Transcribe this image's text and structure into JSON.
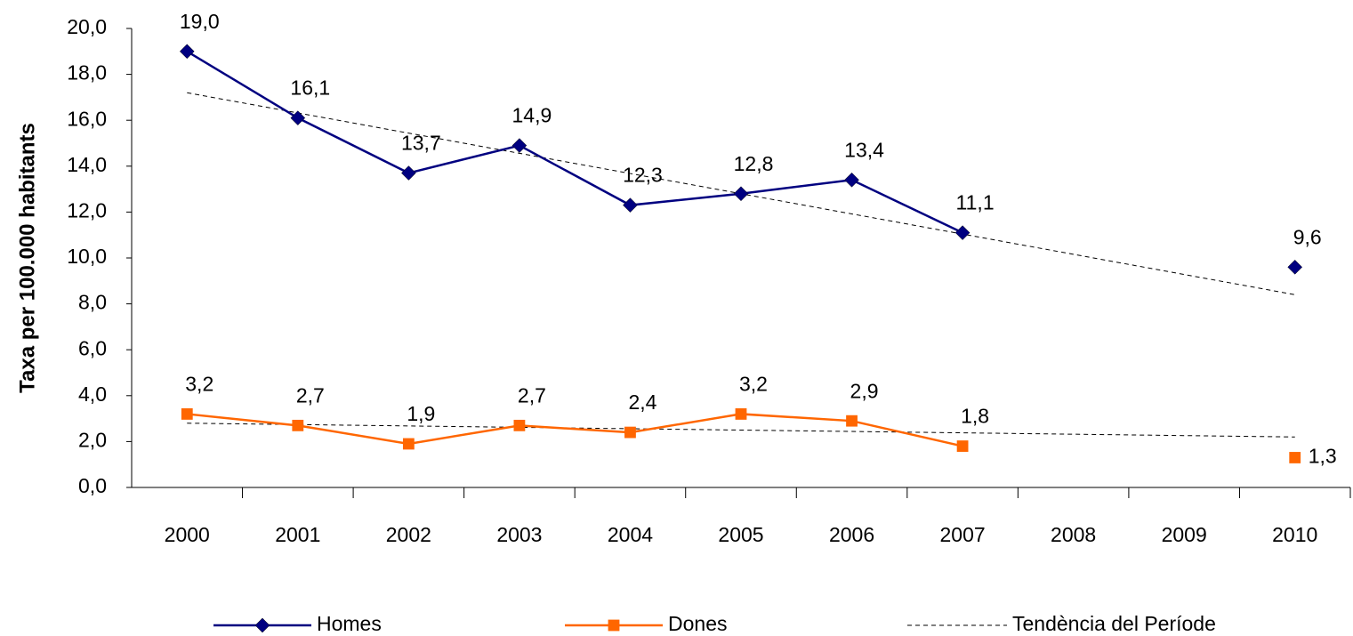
{
  "chart_data": {
    "type": "line",
    "y_label": "Taxa per 100.000 habitants",
    "categories": [
      "2000",
      "2001",
      "2002",
      "2003",
      "2004",
      "2005",
      "2006",
      "2007",
      "2008",
      "2009",
      "2010"
    ],
    "series": [
      {
        "name": "Homes",
        "color": "#000080",
        "marker": "diamond",
        "values": [
          19.0,
          16.1,
          13.7,
          14.9,
          12.3,
          12.8,
          13.4,
          11.1,
          null,
          null,
          9.6
        ],
        "value_labels": [
          "19,0",
          "16,1",
          "13,7",
          "14,9",
          "12,3",
          "12,8",
          "13,4",
          "11,1",
          null,
          null,
          "9,6"
        ]
      },
      {
        "name": "Dones",
        "color": "#ff6600",
        "marker": "square",
        "values": [
          3.2,
          2.7,
          1.9,
          2.7,
          2.4,
          3.2,
          2.9,
          1.8,
          null,
          null,
          1.3
        ],
        "value_labels": [
          "3,2",
          "2,7",
          "1,9",
          "2,7",
          "2,4",
          "3,2",
          "2,9",
          "1,8",
          null,
          null,
          "1,3"
        ]
      }
    ],
    "trend": {
      "name": "Tendència del Període",
      "color": "#000000",
      "lines": [
        {
          "values": [
            17.2,
            16.32,
            15.44,
            14.56,
            13.68,
            12.8,
            11.92,
            11.04,
            10.16,
            9.28,
            8.4
          ]
        },
        {
          "values": [
            2.8,
            2.74,
            2.68,
            2.62,
            2.56,
            2.5,
            2.44,
            2.38,
            2.32,
            2.26,
            2.2
          ]
        }
      ]
    },
    "ylim": [
      0,
      20
    ],
    "yticks": [
      {
        "value": 0,
        "label": "0,0"
      },
      {
        "value": 2,
        "label": "2,0"
      },
      {
        "value": 4,
        "label": "4,0"
      },
      {
        "value": 6,
        "label": "6,0"
      },
      {
        "value": 8,
        "label": "8,0"
      },
      {
        "value": 10,
        "label": "10,0"
      },
      {
        "value": 12,
        "label": "12,0"
      },
      {
        "value": 14,
        "label": "14,0"
      },
      {
        "value": 16,
        "label": "16,0"
      },
      {
        "value": 18,
        "label": "18,0"
      },
      {
        "value": 20,
        "label": "20,0"
      }
    ],
    "grid": false,
    "legend": "bottom"
  }
}
